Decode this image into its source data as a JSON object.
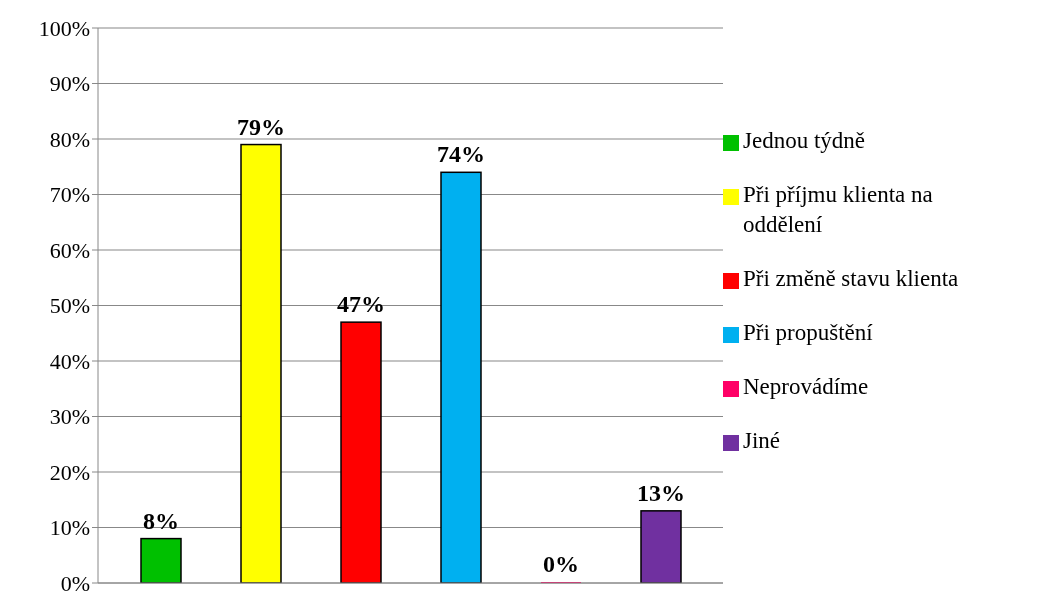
{
  "chart_data": {
    "type": "bar",
    "categories": [
      null
    ],
    "series": [
      {
        "name": "Jednou týdně",
        "color": "#00c000",
        "values": [
          8
        ],
        "value_labels": [
          "8%"
        ]
      },
      {
        "name": "Při příjmu klienta na oddělení",
        "color": "#ffff00",
        "values": [
          79
        ],
        "value_labels": [
          "79%"
        ]
      },
      {
        "name": "Při změně stavu klienta",
        "color": "#ff0000",
        "values": [
          47
        ],
        "value_labels": [
          "47%"
        ]
      },
      {
        "name": "Při propuštění",
        "color": "#00b0f0",
        "values": [
          74
        ],
        "value_labels": [
          "74%"
        ]
      },
      {
        "name": "Neprovádíme",
        "color": "#ff0066",
        "values": [
          0
        ],
        "value_labels": [
          "0%"
        ]
      },
      {
        "name": "Jiné",
        "color": "#7030a0",
        "values": [
          13
        ],
        "value_labels": [
          "13%"
        ]
      }
    ],
    "ylim": [
      0,
      100
    ],
    "yticks": [
      {
        "value": 0,
        "label": "0%"
      },
      {
        "value": 10,
        "label": "10%"
      },
      {
        "value": 20,
        "label": "20%"
      },
      {
        "value": 30,
        "label": "30%"
      },
      {
        "value": 40,
        "label": "40%"
      },
      {
        "value": 50,
        "label": "50%"
      },
      {
        "value": 60,
        "label": "60%"
      },
      {
        "value": 70,
        "label": "70%"
      },
      {
        "value": 80,
        "label": "80%"
      },
      {
        "value": 90,
        "label": "90%"
      },
      {
        "value": 100,
        "label": "100%"
      }
    ],
    "grid": "y",
    "legend": "right"
  }
}
